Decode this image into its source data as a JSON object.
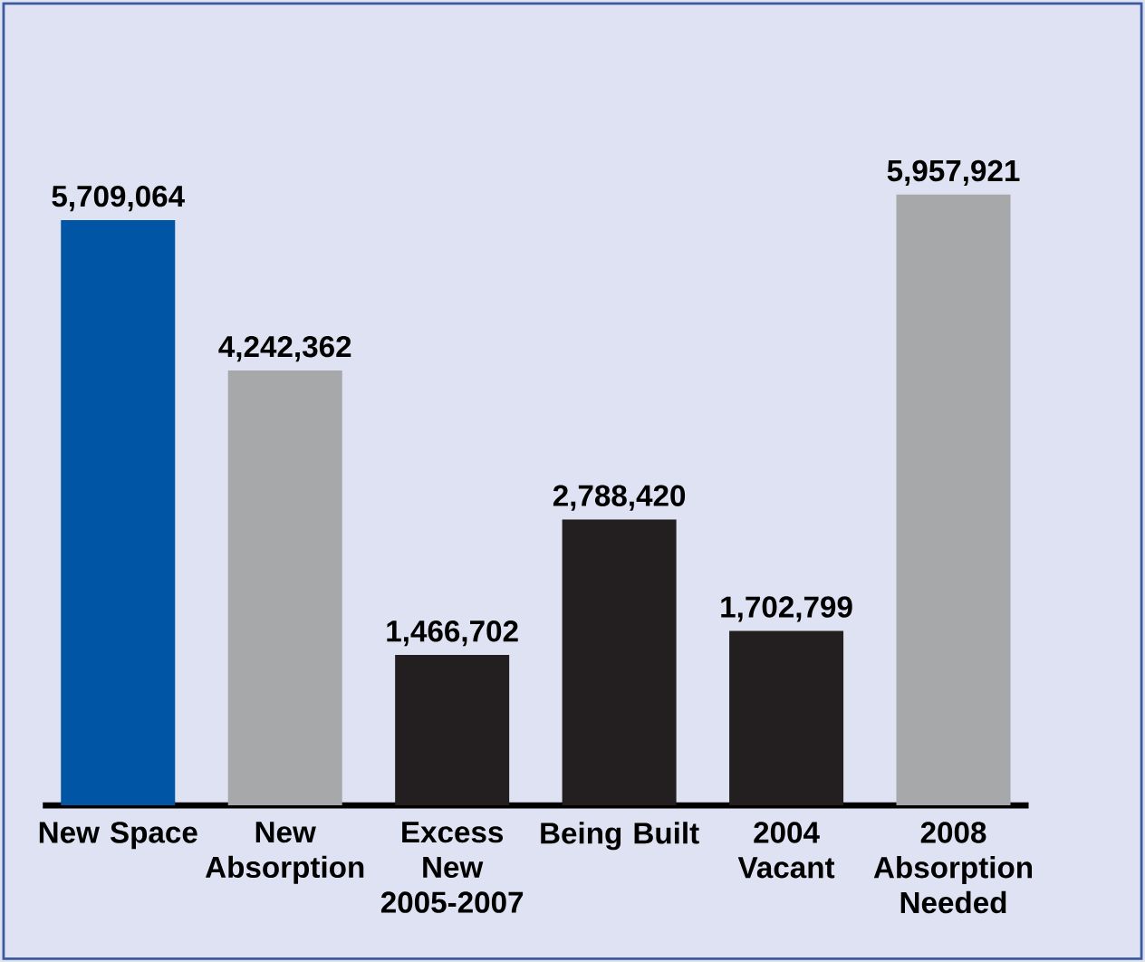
{
  "chart_data": {
    "type": "bar",
    "categories": [
      "New Space",
      "New Absorption",
      "Excess New 2005-2007",
      "Being Built",
      "2004 Vacant",
      "2008 Absorption Needed"
    ],
    "values": [
      5709064,
      4242362,
      1466702,
      2788420,
      1702799,
      5957921
    ],
    "value_labels": [
      "5,709,064",
      "4,242,362",
      "1,466,702",
      "2,788,420",
      "1,702,799",
      "5,957,921"
    ],
    "colors": [
      "#0055a4",
      "#a7a8aa",
      "#231f20",
      "#231f20",
      "#231f20",
      "#a7a8aa"
    ]
  }
}
